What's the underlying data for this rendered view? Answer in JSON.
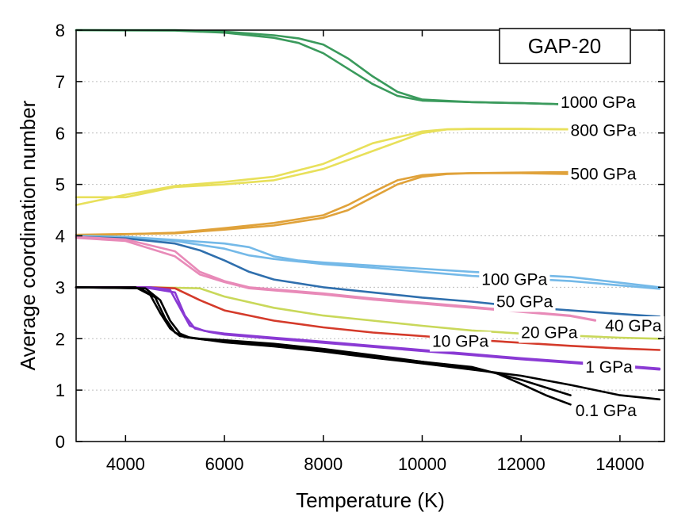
{
  "chart_data": {
    "type": "line",
    "title": "",
    "xlabel": "Temperature (K)",
    "ylabel": "Average coordination number",
    "xlim": [
      3000,
      14900
    ],
    "ylim": [
      0,
      8
    ],
    "xticks": [
      4000,
      6000,
      8000,
      10000,
      12000,
      14000
    ],
    "yticks": [
      0,
      1,
      2,
      3,
      4,
      5,
      6,
      7,
      8
    ],
    "grid": true,
    "grid_axis": "y",
    "legend_box": {
      "text": "GAP-20",
      "placement": "top-right"
    },
    "series": [
      {
        "label": "1000 GPa",
        "color": "#3a9a5c",
        "traces": [
          {
            "x": [
              3000,
              5000,
              6000,
              7000,
              7500,
              8000,
              8500,
              9000,
              9500,
              10000,
              11000,
              12000,
              12800
            ],
            "y": [
              8.0,
              8.0,
              7.97,
              7.9,
              7.84,
              7.72,
              7.45,
              7.1,
              6.8,
              6.65,
              6.6,
              6.58,
              6.56
            ]
          },
          {
            "x": [
              3000,
              5000,
              6000,
              7000,
              7500,
              8000,
              8500,
              9000,
              9500,
              10000,
              11000,
              12000,
              12800
            ],
            "y": [
              8.0,
              7.99,
              7.95,
              7.85,
              7.75,
              7.55,
              7.25,
              6.95,
              6.72,
              6.63,
              6.6,
              6.58,
              6.56
            ]
          }
        ]
      },
      {
        "label": "800 GPa",
        "color": "#e8e05a",
        "traces": [
          {
            "x": [
              3000,
              4000,
              5000,
              6000,
              7000,
              8000,
              9000,
              10000,
              10500,
              11000,
              12000,
              13000
            ],
            "y": [
              4.75,
              4.75,
              4.95,
              5.0,
              5.08,
              5.3,
              5.65,
              6.0,
              6.07,
              6.08,
              6.08,
              6.07
            ]
          },
          {
            "x": [
              3000,
              4000,
              5000,
              6000,
              7000,
              8000,
              9000,
              10000,
              10500,
              11000,
              12000,
              13000
            ],
            "y": [
              4.6,
              4.8,
              4.97,
              5.05,
              5.15,
              5.4,
              5.8,
              6.03,
              6.07,
              6.08,
              6.08,
              6.07
            ]
          }
        ]
      },
      {
        "label": "500 GPa",
        "color": "#e0a23a",
        "traces": [
          {
            "x": [
              3000,
              5000,
              6000,
              7000,
              8000,
              8500,
              9000,
              9500,
              10000,
              10500,
              11000,
              12000,
              13000
            ],
            "y": [
              4.02,
              4.05,
              4.12,
              4.2,
              4.35,
              4.5,
              4.75,
              5.0,
              5.15,
              5.2,
              5.22,
              5.23,
              5.24
            ]
          },
          {
            "x": [
              3000,
              5000,
              6000,
              7000,
              8000,
              8500,
              9000,
              9500,
              10000,
              10500,
              11000,
              12000,
              13000
            ],
            "y": [
              4.0,
              4.06,
              4.15,
              4.25,
              4.4,
              4.6,
              4.85,
              5.08,
              5.18,
              5.21,
              5.22,
              5.22,
              5.2
            ]
          }
        ]
      },
      {
        "label": "100 GPa",
        "color": "#74b9e8",
        "traces": [
          {
            "x": [
              3000,
              4000,
              5000,
              6000,
              6500,
              7000,
              7500,
              8000,
              9000,
              10000,
              11000,
              12000,
              13000,
              14800
            ],
            "y": [
              4.0,
              3.98,
              3.92,
              3.85,
              3.78,
              3.6,
              3.52,
              3.48,
              3.42,
              3.36,
              3.3,
              3.25,
              3.2,
              3.0
            ]
          },
          {
            "x": [
              3000,
              4000,
              5000,
              6000,
              6500,
              7000,
              7500,
              8000,
              9000,
              10000,
              11000,
              12000,
              13000,
              14800
            ],
            "y": [
              4.0,
              3.97,
              3.9,
              3.75,
              3.62,
              3.55,
              3.5,
              3.45,
              3.38,
              3.3,
              3.22,
              3.17,
              3.12,
              2.97
            ]
          }
        ]
      },
      {
        "label": "50 GPa",
        "color": "#2f6fad",
        "traces": [
          {
            "x": [
              3000,
              4000,
              5000,
              5500,
              6000,
              6500,
              7000,
              8000,
              9000,
              10000,
              11000,
              12000,
              13000,
              14000,
              14800
            ],
            "y": [
              3.98,
              3.95,
              3.85,
              3.72,
              3.52,
              3.3,
              3.15,
              3.0,
              2.9,
              2.8,
              2.72,
              2.62,
              2.55,
              2.48,
              2.43
            ]
          }
        ]
      },
      {
        "label": "40 GPa",
        "color": "#e88ab8",
        "traces": [
          {
            "x": [
              3000,
              4000,
              5000,
              5500,
              6000,
              6500,
              7000,
              8000,
              9000,
              10000,
              11000,
              12000,
              13000,
              13500
            ],
            "y": [
              3.98,
              3.93,
              3.7,
              3.3,
              3.12,
              3.0,
              2.96,
              2.88,
              2.78,
              2.7,
              2.62,
              2.53,
              2.45,
              2.36
            ]
          },
          {
            "x": [
              3000,
              4000,
              5000,
              5500,
              6000,
              6500,
              7000,
              8000,
              9000,
              10000,
              11000,
              12000,
              13000,
              13500
            ],
            "y": [
              3.96,
              3.9,
              3.6,
              3.25,
              3.1,
              2.98,
              2.94,
              2.86,
              2.76,
              2.68,
              2.6,
              2.52,
              2.44,
              2.35
            ]
          }
        ]
      },
      {
        "label": "20 GPa",
        "color": "#c9d85a",
        "traces": [
          {
            "x": [
              3000,
              4500,
              5500,
              6000,
              7000,
              8000,
              9000,
              10000,
              11000,
              12000,
              13000,
              14000,
              14800
            ],
            "y": [
              3.0,
              3.0,
              2.98,
              2.82,
              2.6,
              2.45,
              2.35,
              2.25,
              2.16,
              2.1,
              2.06,
              2.02,
              2.0
            ]
          }
        ]
      },
      {
        "label": "10 GPa",
        "color": "#d43a2a",
        "traces": [
          {
            "x": [
              3000,
              4500,
              5000,
              5500,
              6000,
              7000,
              8000,
              9000,
              10000,
              11000,
              12000,
              13000,
              14000,
              14800
            ],
            "y": [
              3.0,
              3.0,
              2.98,
              2.75,
              2.55,
              2.35,
              2.22,
              2.12,
              2.05,
              1.98,
              1.92,
              1.86,
              1.81,
              1.78
            ]
          }
        ]
      },
      {
        "label": "1 GPa",
        "color": "#8a3ad4",
        "traces": [
          {
            "x": [
              3000,
              4500,
              4900,
              5100,
              5300,
              5600,
              6000,
              7000,
              8000,
              9000,
              10000,
              11000,
              12000,
              13000,
              14000,
              14800
            ],
            "y": [
              3.0,
              3.0,
              2.95,
              2.6,
              2.25,
              2.15,
              2.1,
              2.02,
              1.94,
              1.86,
              1.78,
              1.7,
              1.62,
              1.55,
              1.48,
              1.42
            ]
          },
          {
            "x": [
              3000,
              4500,
              5000,
              5200,
              5400,
              5700,
              6000,
              7000,
              8000,
              9000,
              10000,
              11000,
              12000,
              13000,
              14000,
              14800
            ],
            "y": [
              3.0,
              2.98,
              2.9,
              2.45,
              2.2,
              2.13,
              2.08,
              2.0,
              1.92,
              1.84,
              1.76,
              1.68,
              1.6,
              1.53,
              1.46,
              1.4
            ]
          }
        ]
      },
      {
        "label": "0.1 GPa",
        "color": "#000000",
        "traces": [
          {
            "x": [
              3000,
              4200,
              4500,
              4700,
              4900,
              5100,
              5500,
              6000,
              7000,
              8000,
              9000,
              10000,
              11000,
              11500,
              12000,
              12500,
              13000
            ],
            "y": [
              3.0,
              3.0,
              2.85,
              2.5,
              2.2,
              2.05,
              2.0,
              1.97,
              1.9,
              1.8,
              1.68,
              1.55,
              1.42,
              1.33,
              1.12,
              0.9,
              0.72
            ]
          },
          {
            "x": [
              3000,
              4300,
              4600,
              4800,
              5000,
              5200,
              5600,
              6000,
              7000,
              8000,
              9000,
              10000,
              11000,
              12000,
              13000
            ],
            "y": [
              3.0,
              2.98,
              2.8,
              2.4,
              2.12,
              2.03,
              1.98,
              1.95,
              1.88,
              1.78,
              1.66,
              1.55,
              1.45,
              1.2,
              0.9
            ]
          },
          {
            "x": [
              3000,
              4400,
              4700,
              4900,
              5100,
              5300,
              5700,
              6000,
              7000,
              8000,
              9000,
              10000,
              11000,
              12000,
              13000,
              14000,
              14800
            ],
            "y": [
              3.0,
              2.98,
              2.75,
              2.35,
              2.1,
              2.02,
              1.97,
              1.93,
              1.85,
              1.75,
              1.63,
              1.52,
              1.4,
              1.28,
              1.1,
              0.9,
              0.82
            ]
          }
        ]
      }
    ],
    "label_positions": {
      "1000 GPa": [
        12800,
        6.6
      ],
      "800 GPa": [
        13000,
        6.05
      ],
      "500 GPa": [
        13000,
        5.2
      ],
      "100 GPa": [
        11200,
        3.15
      ],
      "50 GPa": [
        11500,
        2.72
      ],
      "40 GPa": [
        13700,
        2.25
      ],
      "20 GPa": [
        12000,
        2.12
      ],
      "10 GPa": [
        10200,
        1.95
      ],
      "1 GPa": [
        13300,
        1.45
      ],
      "0.1 GPa": [
        13100,
        0.6
      ]
    }
  }
}
